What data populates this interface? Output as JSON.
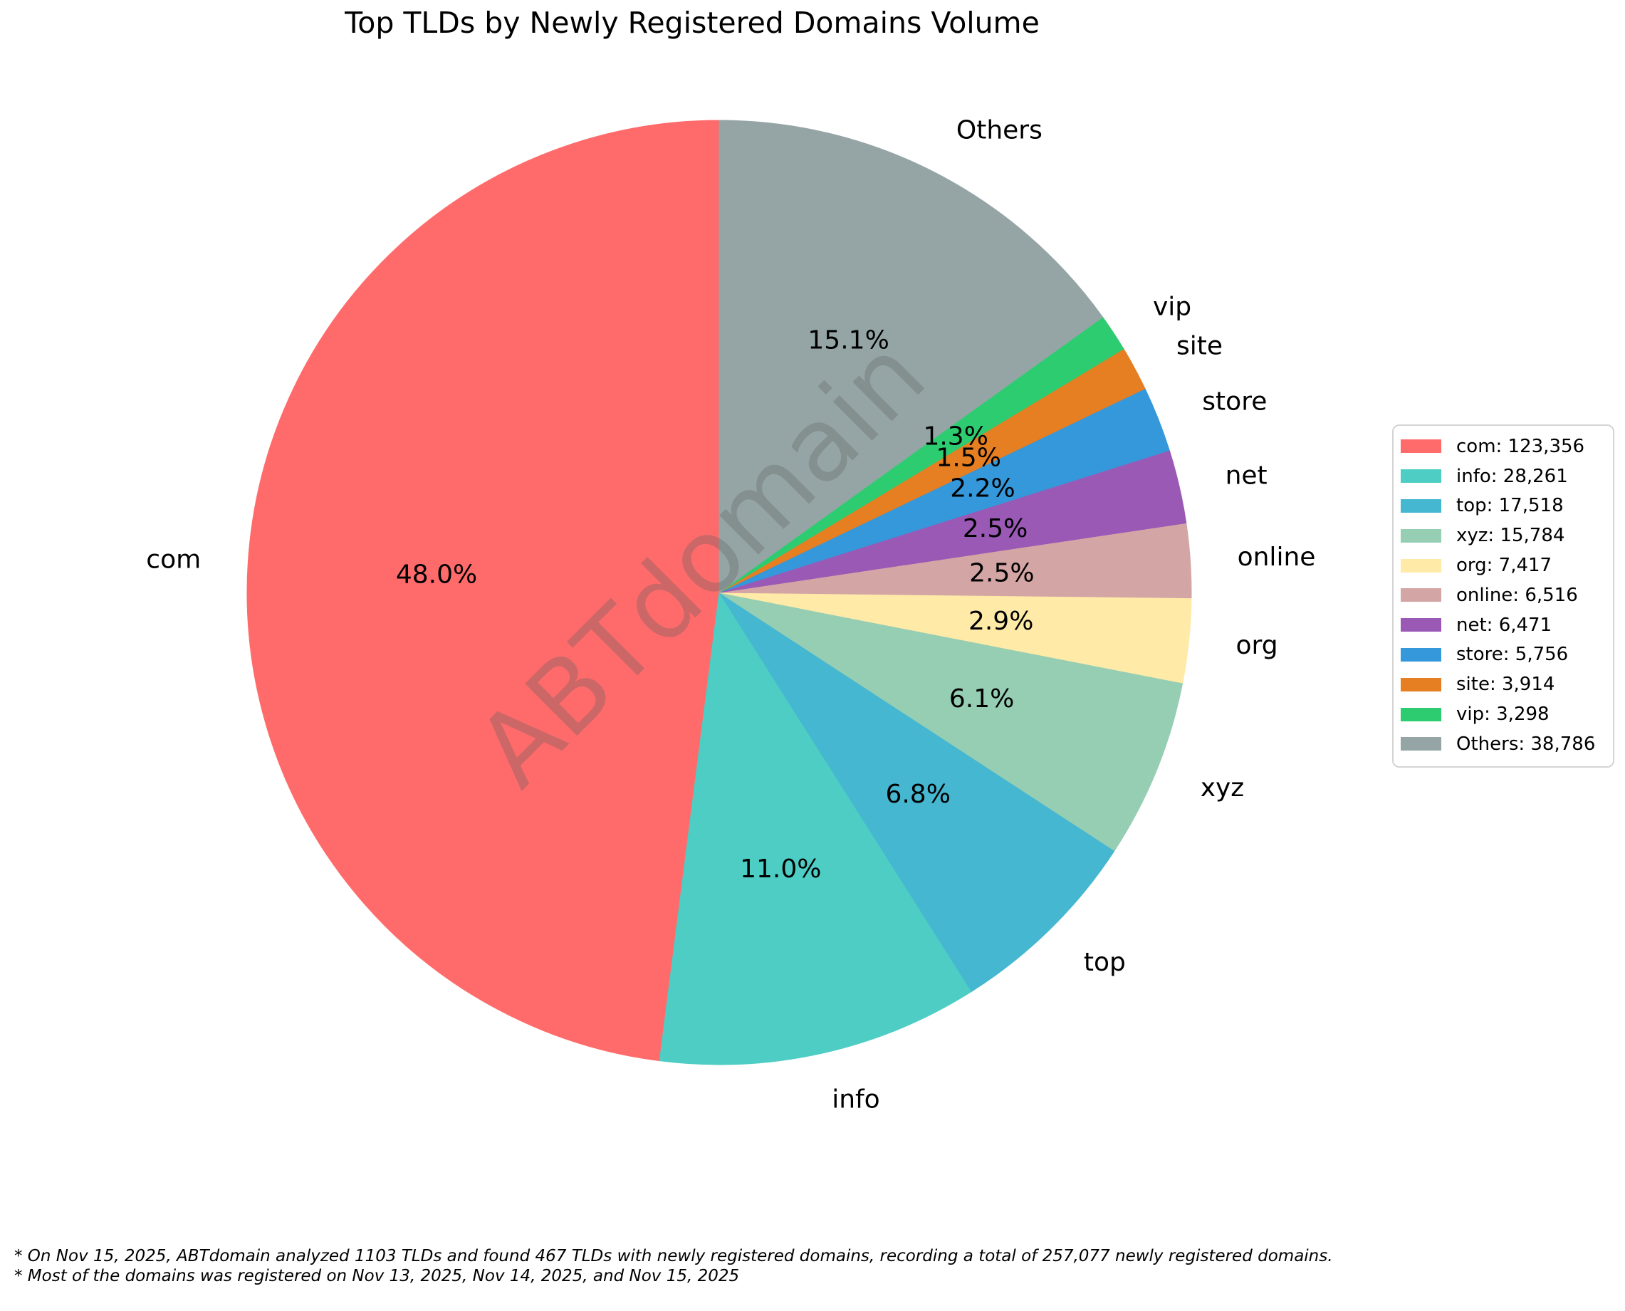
{
  "title": "Top TLDs by Newly Registered Domains Volume",
  "watermark": {
    "text": "ABTdomain"
  },
  "footnotes": [
    "* On Nov 15, 2025, ABTdomain analyzed 1103 TLDs and found 467 TLDs with newly registered domains, recording a total of 257,077 newly registered domains.",
    "* Most of the domains was registered on Nov 13, 2025, Nov 14, 2025, and Nov 15, 2025"
  ],
  "chart_data": {
    "type": "pie",
    "title": "Top TLDs by Newly Registered Domains Volume",
    "total": 257077,
    "start_angle_deg": 90,
    "direction": "counterclockwise",
    "legend_position": "center-right",
    "autopct_format": "1-decimal-percent",
    "slices": [
      {
        "label": "com",
        "value": 123356,
        "pct_label": "48.0%",
        "legend_label": "com: 123,356",
        "color": "#FF6B6B"
      },
      {
        "label": "info",
        "value": 28261,
        "pct_label": "11.0%",
        "legend_label": "info: 28,261",
        "color": "#4ECDC4"
      },
      {
        "label": "top",
        "value": 17518,
        "pct_label": "6.8%",
        "legend_label": "top: 17,518",
        "color": "#45B7D1"
      },
      {
        "label": "xyz",
        "value": 15784,
        "pct_label": "6.1%",
        "legend_label": "xyz: 15,784",
        "color": "#96CEB4"
      },
      {
        "label": "org",
        "value": 7417,
        "pct_label": "2.9%",
        "legend_label": "org: 7,417",
        "color": "#FFEAA7"
      },
      {
        "label": "online",
        "value": 6516,
        "pct_label": "2.5%",
        "legend_label": "online: 6,516",
        "color": "#D4A5A5"
      },
      {
        "label": "net",
        "value": 6471,
        "pct_label": "2.5%",
        "legend_label": "net: 6,471",
        "color": "#9B59B6"
      },
      {
        "label": "store",
        "value": 5756,
        "pct_label": "2.2%",
        "legend_label": "store: 5,756",
        "color": "#3498DB"
      },
      {
        "label": "site",
        "value": 3914,
        "pct_label": "1.5%",
        "legend_label": "site: 3,914",
        "color": "#E67E22"
      },
      {
        "label": "vip",
        "value": 3298,
        "pct_label": "1.3%",
        "legend_label": "vip: 3,298",
        "color": "#2ECC71"
      },
      {
        "label": "Others",
        "value": 38786,
        "pct_label": "15.1%",
        "legend_label": "Others: 38,786",
        "color": "#95A5A6"
      }
    ]
  }
}
